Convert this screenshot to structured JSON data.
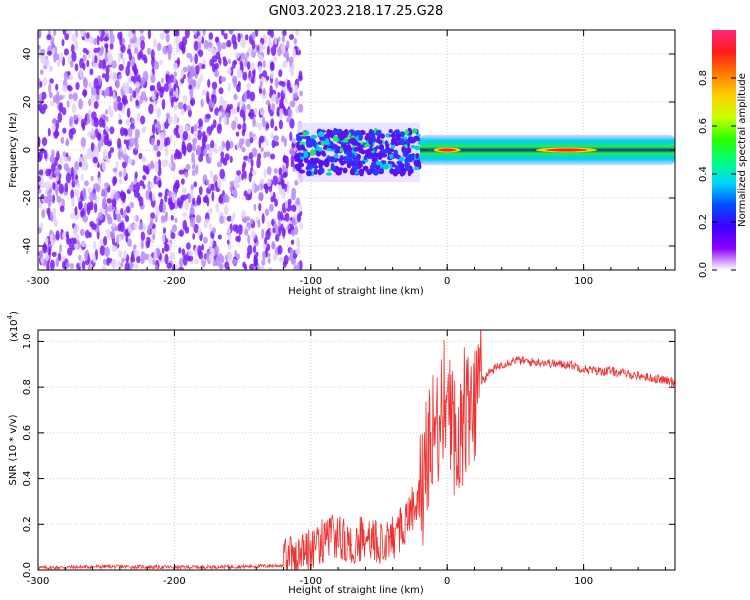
{
  "title": "GN03.2023.218.17.25.G28",
  "colorbar": {
    "label": "Normalized spectral amplitude",
    "ticks": [
      "0.0",
      "0.2",
      "0.4",
      "0.6",
      "0.8"
    ],
    "stops": [
      "#ffffff",
      "#8a00ff",
      "#3b00ff",
      "#0050ff",
      "#00d8ff",
      "#00ff7a",
      "#2cff00",
      "#c8ff00",
      "#ffd000",
      "#ff7a00",
      "#ff1a1a",
      "#ff2a7a"
    ]
  },
  "chart_data": [
    {
      "type": "heatmap",
      "title": "",
      "xlabel": "Height of straight line (km)",
      "ylabel": "Frequency (Hz)",
      "xlim": [
        -300,
        167
      ],
      "ylim": [
        -50,
        50
      ],
      "xticks": [
        "-300",
        "-200",
        "-100",
        "0",
        "100"
      ],
      "yticks": [
        "-40",
        "-20",
        "0",
        "20",
        "40"
      ],
      "grid": true,
      "regions": [
        {
          "name": "diffuse noise",
          "x": [
            -300,
            -107
          ],
          "freq_range": [
            -50,
            50
          ],
          "amplitude": 0.08
        },
        {
          "name": "scintillation band",
          "x": [
            -110,
            -20
          ],
          "freq_range": [
            -10,
            8
          ],
          "amplitude": 0.2
        },
        {
          "name": "direct signal line",
          "x": [
            -20,
            167
          ],
          "freq_range": [
            -3,
            3
          ],
          "amplitude": 0.35
        },
        {
          "name": "peak",
          "x": [
            -10,
            10
          ],
          "freq_range": [
            -1,
            1
          ],
          "amplitude": 0.9
        },
        {
          "name": "peak",
          "x": [
            65,
            110
          ],
          "freq_range": [
            -1,
            1
          ],
          "amplitude": 0.9
        }
      ]
    },
    {
      "type": "line",
      "title": "",
      "xlabel": "Height of straight line (km)",
      "ylabel": "SNR (10 * v/v)",
      "scale_label": "(x10",
      "scale_exp": "4",
      "scale_close": ")",
      "xlim": [
        -300,
        167
      ],
      "ylim": [
        0,
        1.05
      ],
      "xticks": [
        "-300",
        "-200",
        "-100",
        "0",
        "100"
      ],
      "yticks": [
        "0.0",
        "0.2",
        "0.4",
        "0.6",
        "0.8",
        "1.0"
      ],
      "grid": true,
      "series": [
        {
          "color": "#ee3333",
          "x": [
            -300,
            -250,
            -200,
            -150,
            -120,
            -110,
            -100,
            -90,
            -80,
            -70,
            -60,
            -50,
            -40,
            -30,
            -20,
            -15,
            -10,
            -5,
            0,
            5,
            10,
            15,
            20,
            25,
            30,
            40,
            50,
            60,
            70,
            80,
            90,
            100,
            110,
            120,
            130,
            140,
            150,
            160,
            167
          ],
          "values": [
            0.01,
            0.015,
            0.012,
            0.015,
            0.02,
            0.04,
            0.08,
            0.12,
            0.13,
            0.11,
            0.12,
            0.1,
            0.12,
            0.2,
            0.3,
            0.4,
            0.55,
            0.65,
            0.78,
            0.5,
            0.6,
            0.65,
            0.72,
            0.82,
            0.86,
            0.9,
            0.92,
            0.91,
            0.91,
            0.9,
            0.9,
            0.88,
            0.87,
            0.87,
            0.86,
            0.85,
            0.84,
            0.83,
            0.82
          ]
        }
      ]
    }
  ]
}
